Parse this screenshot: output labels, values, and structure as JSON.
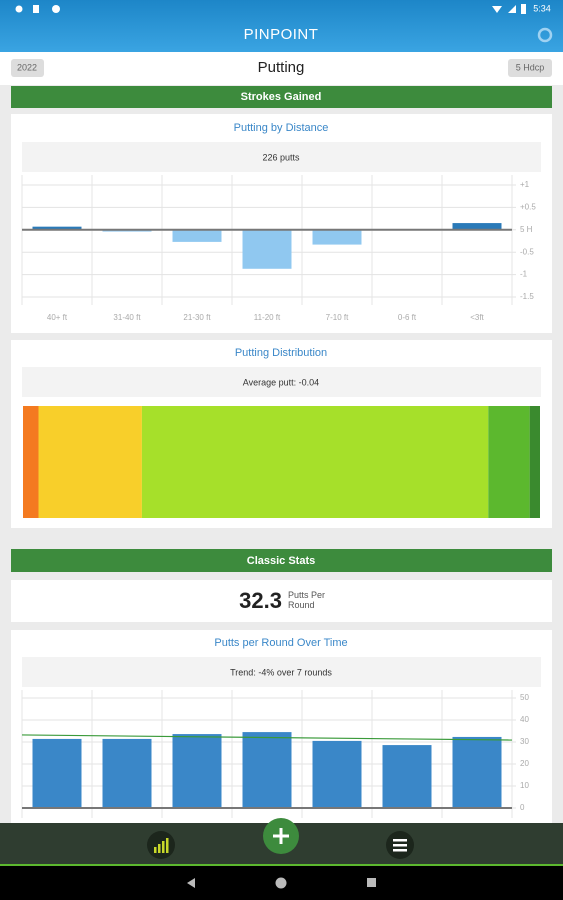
{
  "status_bar": {
    "time": "5:34"
  },
  "app": {
    "title": "PINPOINT"
  },
  "header": {
    "year": "2022",
    "title": "Putting",
    "handicap": "5 Hdcp"
  },
  "sections": {
    "strokes_gained": "Strokes Gained",
    "classic_stats": "Classic Stats"
  },
  "classic_stats": {
    "value": "32.3",
    "label": "Putts Per Round"
  },
  "chart_data": [
    {
      "type": "bar",
      "title": "Putting by Distance",
      "subtitle": "226 putts",
      "categories": [
        "40+ ft",
        "31-40 ft",
        "21-30 ft",
        "11-20 ft",
        "7-10 ft",
        "0-6 ft",
        "<3ft"
      ],
      "values": [
        0.07,
        -0.04,
        -0.27,
        -0.87,
        -0.33,
        0,
        0.15
      ],
      "colors": [
        "#2a7ab8",
        "#90c8f0",
        "#90c8f0",
        "#90c8f0",
        "#90c8f0",
        "#90c8f0",
        "#2a7ab8"
      ],
      "ylim": [
        -1.5,
        1
      ],
      "yticks": [
        {
          "value": 1,
          "label": "+1"
        },
        {
          "value": 0.5,
          "label": "+0.5"
        },
        {
          "value": 0,
          "label": "5 H"
        },
        -0.5,
        -1,
        -1.5
      ],
      "grid": true
    },
    {
      "type": "stacked-bar",
      "title": "Putting Distribution",
      "subtitle": "Average putt: -0.04",
      "values": [
        3,
        20,
        67,
        8,
        2
      ],
      "colors": [
        "#f47a20",
        "#f8cf2a",
        "#a6e02a",
        "#5cb82e",
        "#3a8a2e"
      ]
    },
    {
      "type": "bar",
      "title": "Putts per Round Over Time",
      "subtitle": "Trend: -4% over 7  rounds",
      "values": [
        31.4,
        31.4,
        33.6,
        34.5,
        30.5,
        28.6,
        32.3
      ],
      "color": "#3a87c8",
      "ylim": [
        0,
        50
      ],
      "yticks": [
        0,
        10,
        20,
        30,
        40,
        50
      ],
      "grid": true,
      "trend": [
        33.2,
        30.9
      ],
      "trend_color": "#3a9a3a"
    }
  ]
}
